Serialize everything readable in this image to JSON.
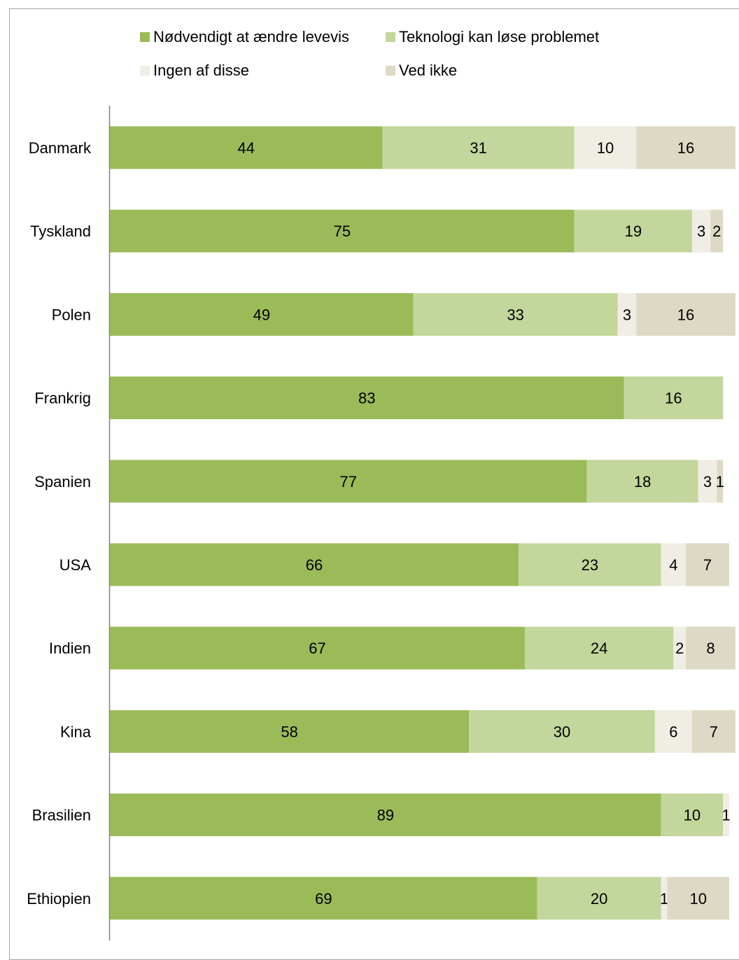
{
  "chart_data": {
    "type": "bar",
    "orientation": "horizontal",
    "stacked": true,
    "categories": [
      "Danmark",
      "Tyskland",
      "Polen",
      "Frankrig",
      "Spanien",
      "USA",
      "Indien",
      "Kina",
      "Brasilien",
      "Ethiopien"
    ],
    "series": [
      {
        "name": "Nødvendigt at ændre levevis",
        "color": "#9bbb59",
        "values": [
          44,
          75,
          49,
          83,
          77,
          66,
          67,
          58,
          89,
          69
        ]
      },
      {
        "name": "Teknologi kan løse problemet",
        "color": "#c3d69b",
        "values": [
          31,
          19,
          33,
          16,
          18,
          23,
          24,
          30,
          10,
          20
        ]
      },
      {
        "name": "Ingen af disse",
        "color": "#efede4",
        "values": [
          10,
          3,
          3,
          0,
          3,
          4,
          2,
          6,
          1,
          1
        ]
      },
      {
        "name": "Ved ikke",
        "color": "#ddd9c4",
        "values": [
          16,
          2,
          16,
          0,
          1,
          7,
          8,
          7,
          0,
          10
        ]
      }
    ],
    "title": "",
    "xlabel": "",
    "ylabel": "",
    "xlim": [
      0,
      100
    ],
    "grid": false,
    "legend_position": "top"
  }
}
